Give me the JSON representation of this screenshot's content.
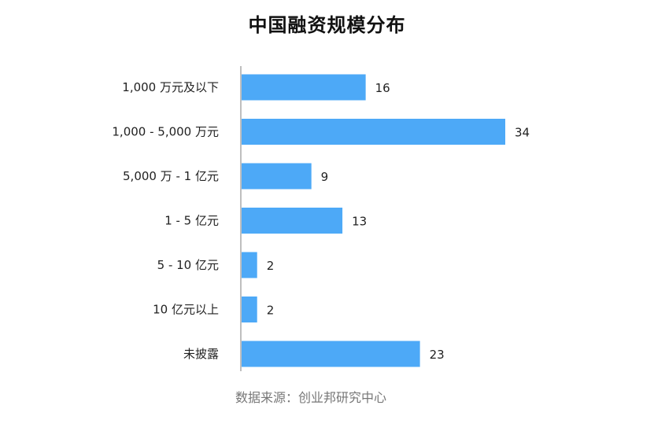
{
  "chart_data": {
    "type": "bar",
    "orientation": "horizontal",
    "title": "中国融资规模分布",
    "categories": [
      "1,000 万元及以下",
      "1,000 - 5,000 万元",
      "5,000 万 - 1 亿元",
      "1 - 5 亿元",
      "5 - 10 亿元",
      "10 亿元以上",
      "未披露"
    ],
    "values": [
      16,
      34,
      9,
      13,
      2,
      2,
      23
    ],
    "xlim": [
      0,
      34
    ],
    "grid": false,
    "legend": "none",
    "bar_color": "#4DA9F7",
    "axis_color": "#BFBFBF",
    "source": "数据来源：创业邦研究中心"
  }
}
